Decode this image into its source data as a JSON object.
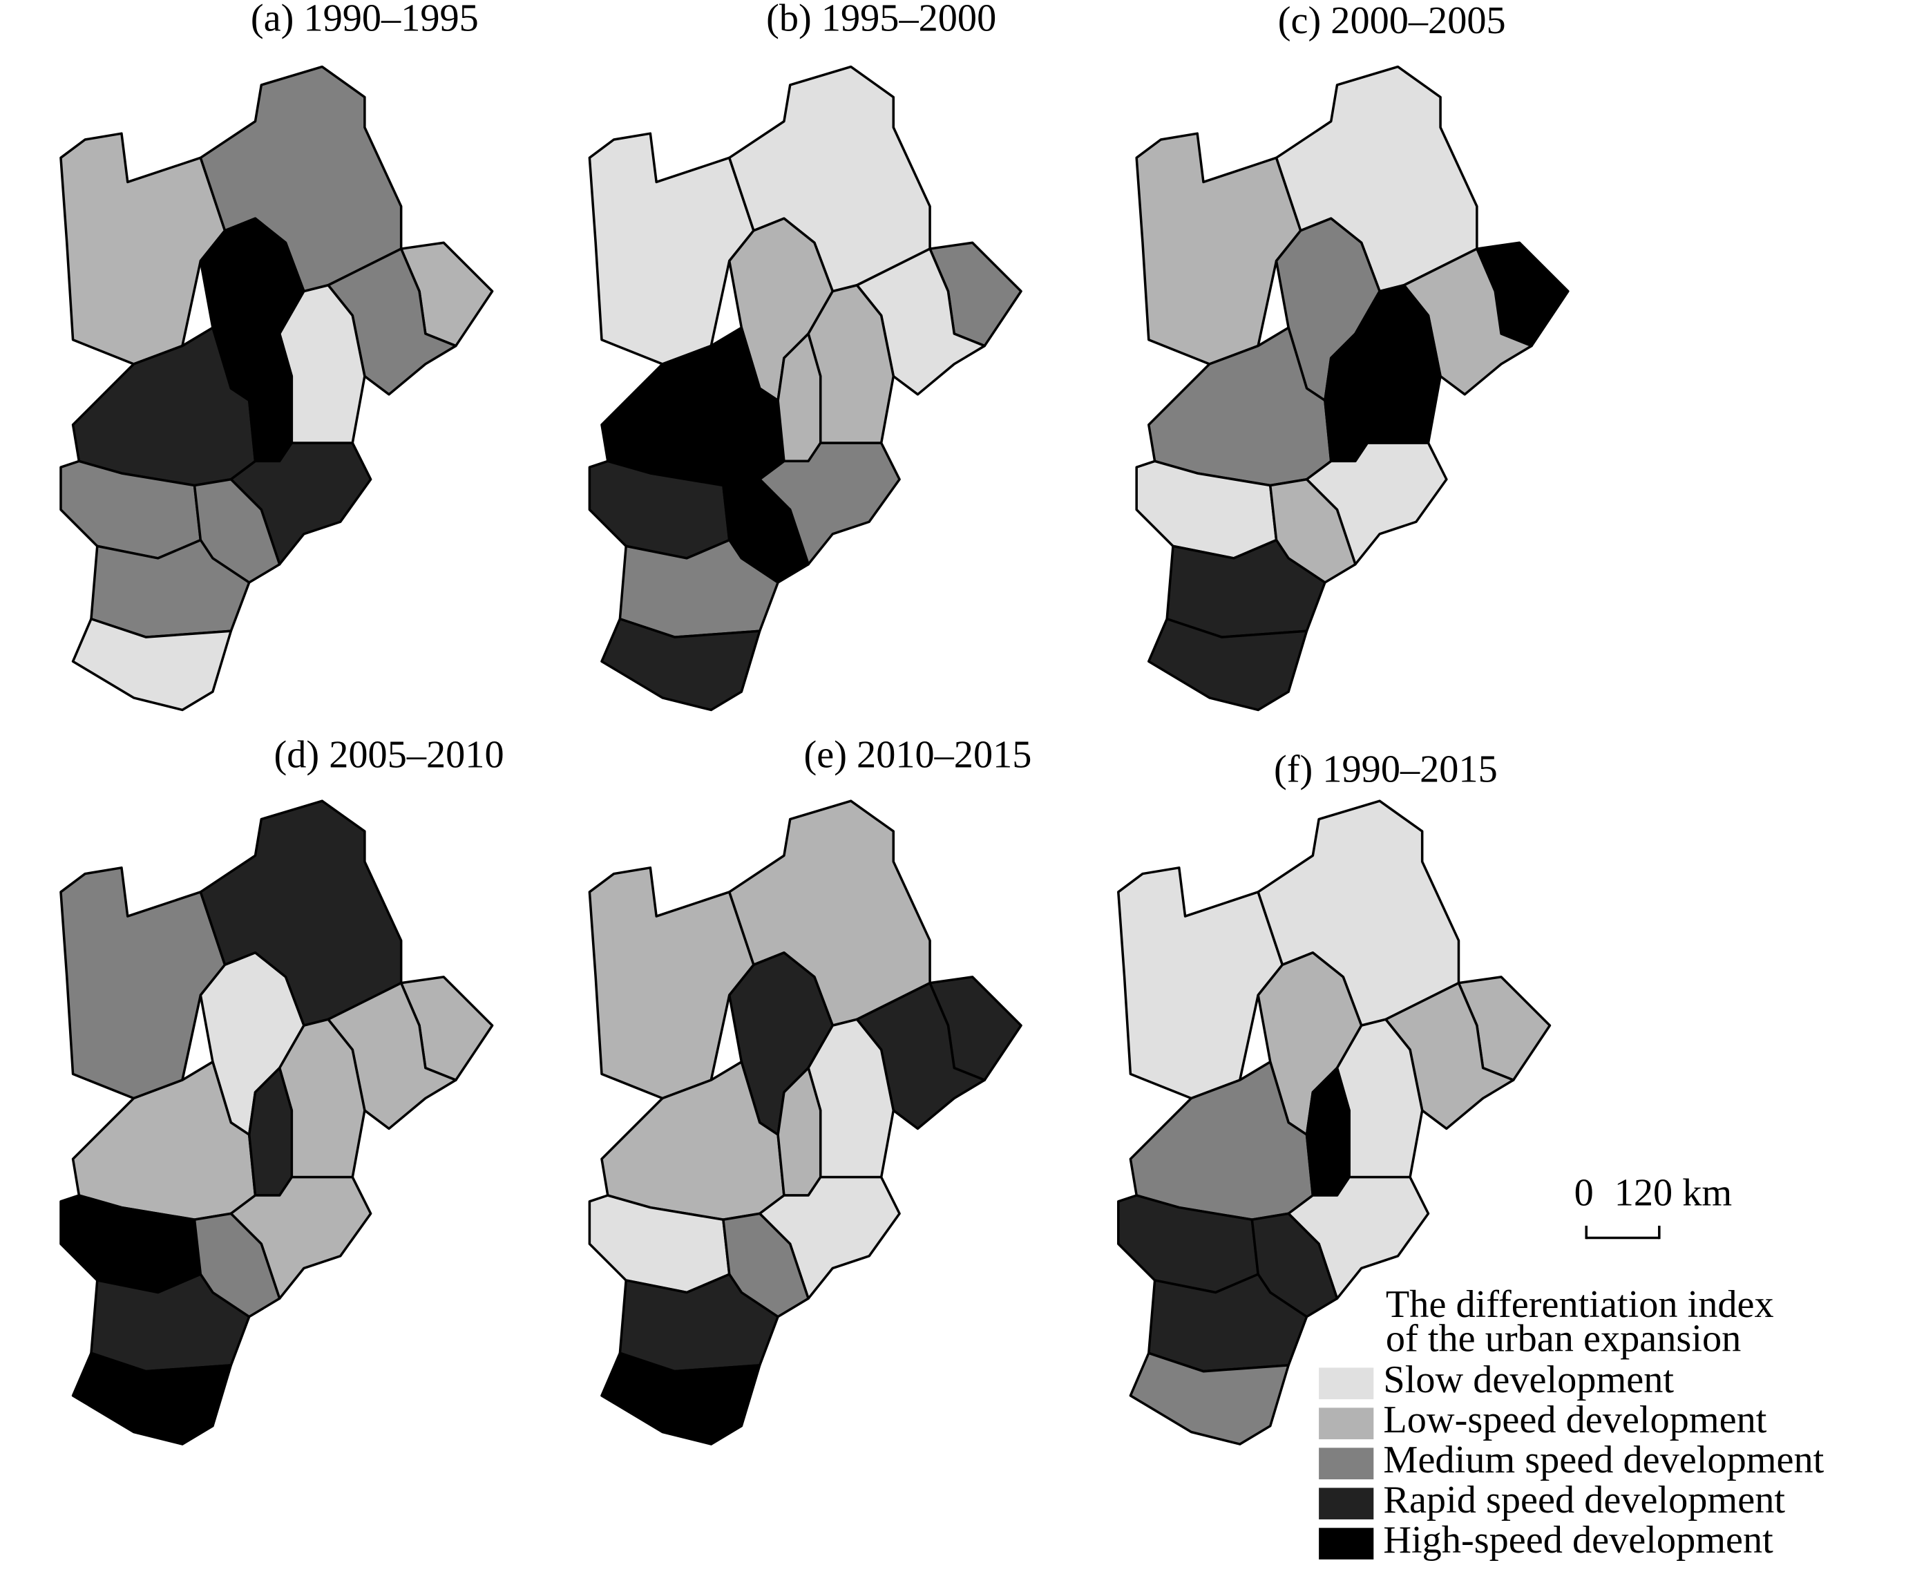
{
  "panels": [
    {
      "title": "(a) 1990–1995"
    },
    {
      "title": "(b) 1995–2000"
    },
    {
      "title": "(c) 2000–2005"
    },
    {
      "title": "(d) 2005–2010"
    },
    {
      "title": "(e) 2010–2015"
    },
    {
      "title": "(f) 1990–2015"
    }
  ],
  "scale_bar": {
    "start": "0",
    "end": "120 km"
  },
  "legend": {
    "title_lines": [
      "The differentiation index",
      "of the urban expansion"
    ],
    "items": [
      {
        "label": "Slow development",
        "color": "#e0e0e0"
      },
      {
        "label": "Low-speed development",
        "color": "#b3b3b3"
      },
      {
        "label": "Medium speed development",
        "color": "#808080"
      },
      {
        "label": "Rapid speed development",
        "color": "#222222"
      },
      {
        "label": "High-speed development",
        "color": "#000000"
      }
    ]
  }
}
